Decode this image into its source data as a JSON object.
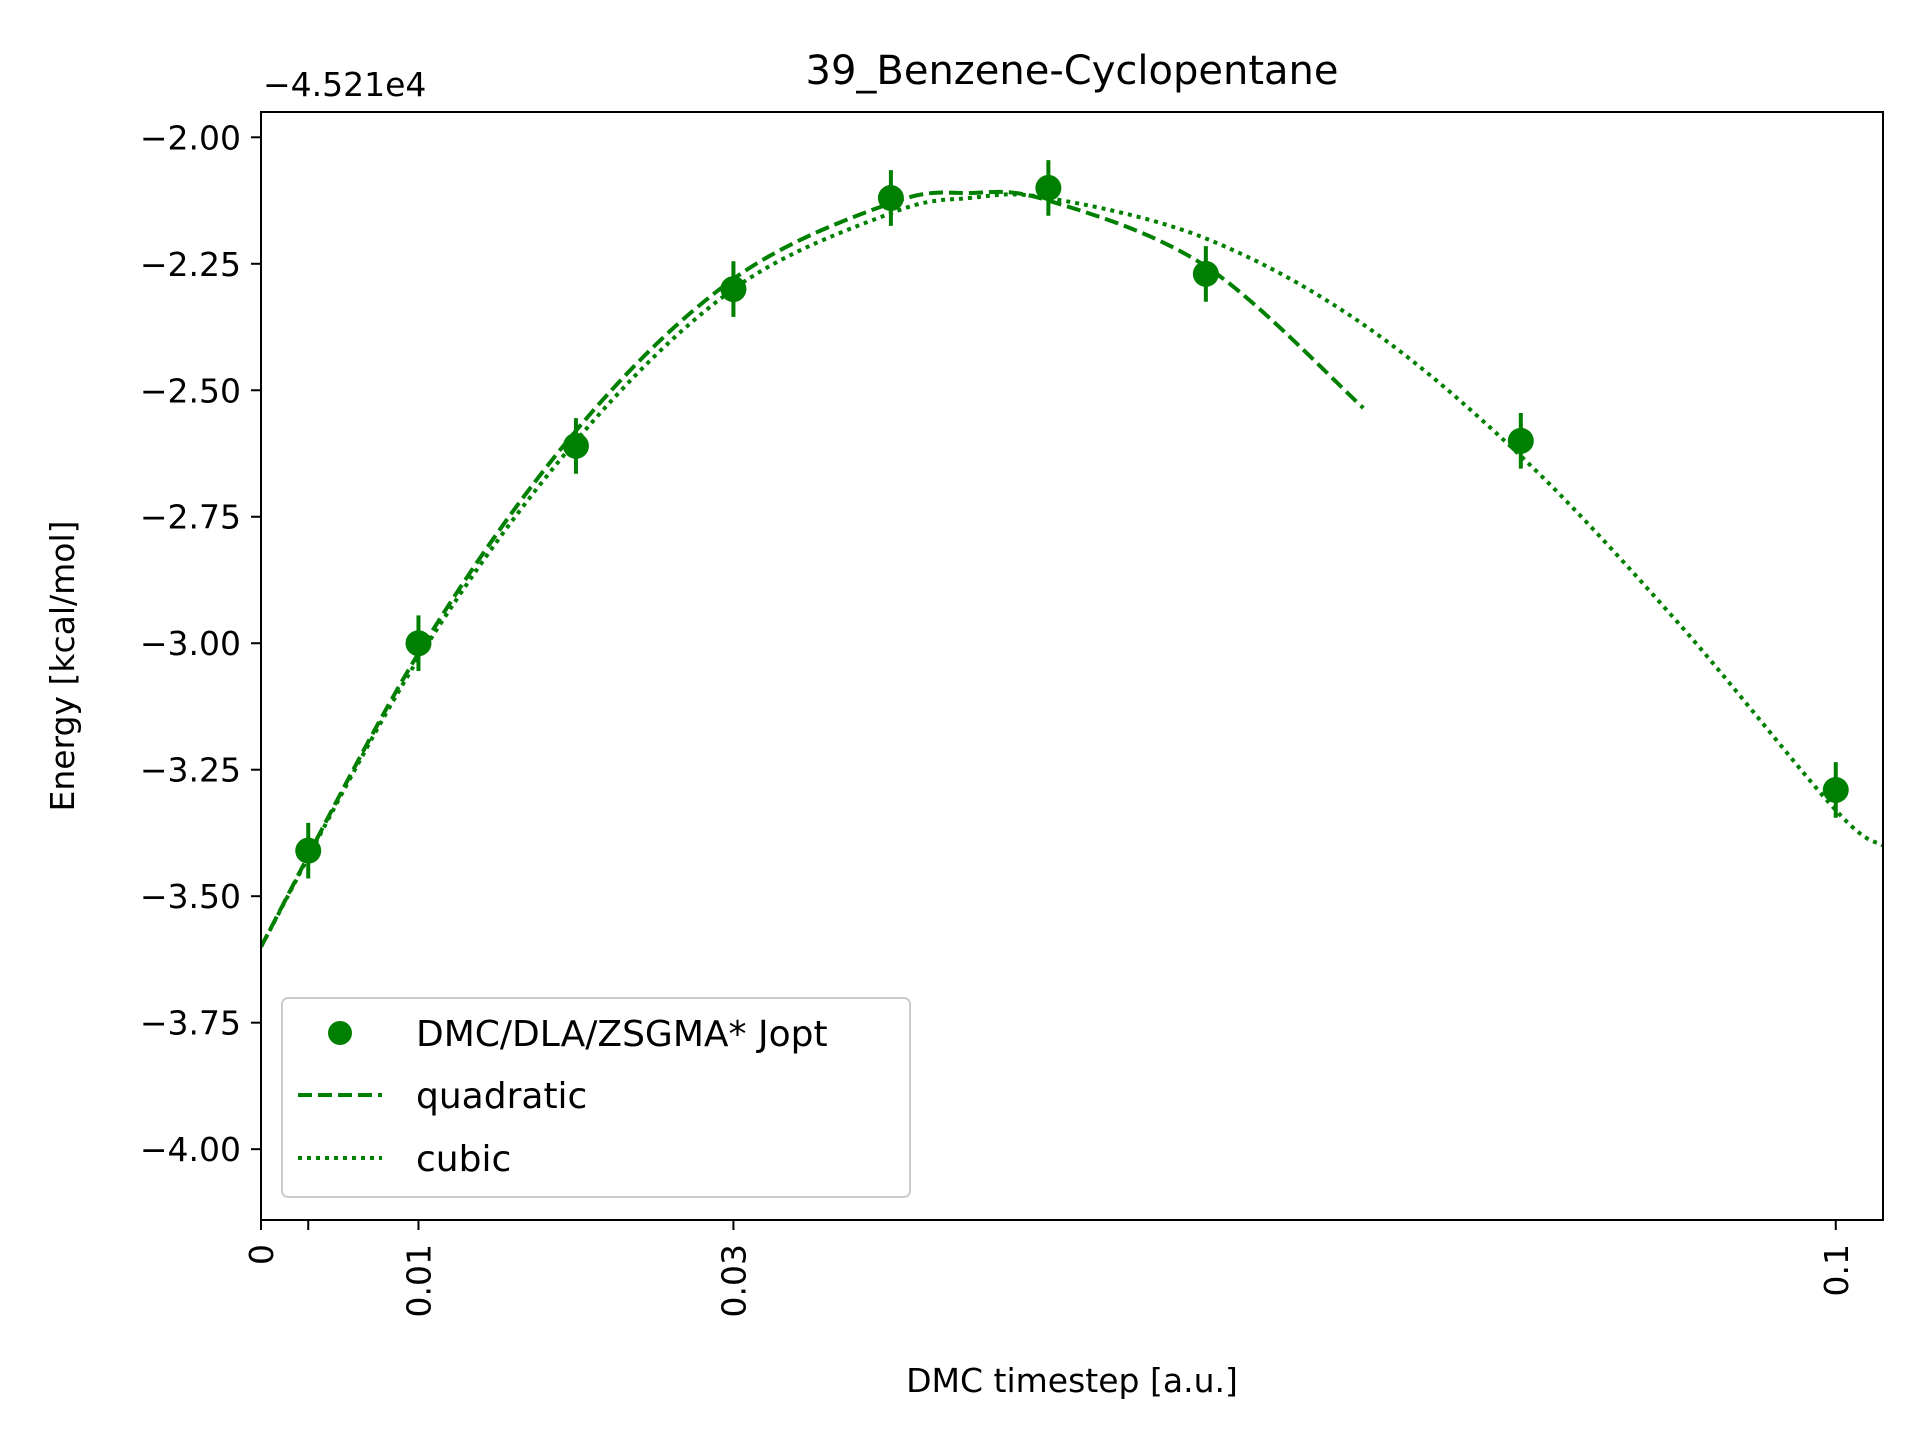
{
  "chart_data": {
    "type": "scatter",
    "title": "39_Benzene-Cyclopentane",
    "xlabel": "DMC timestep [a.u.]",
    "ylabel": "Energy [kcal/mol]",
    "y_offset_label": "−4.521e4",
    "xlim": [
      0,
      0.103
    ],
    "ylim": [
      -4.14,
      -1.95
    ],
    "x_ticks": [
      {
        "value": 0,
        "label": "0"
      },
      {
        "value": 0.003,
        "label": ""
      },
      {
        "value": 0.01,
        "label": "0.01"
      },
      {
        "value": 0.03,
        "label": "0.03"
      },
      {
        "value": 0.1,
        "label": "0.1"
      }
    ],
    "y_ticks": [
      {
        "value": -2.0,
        "label": "−2.00"
      },
      {
        "value": -2.25,
        "label": "−2.25"
      },
      {
        "value": -2.5,
        "label": "−2.50"
      },
      {
        "value": -2.75,
        "label": "−2.75"
      },
      {
        "value": -3.0,
        "label": "−3.00"
      },
      {
        "value": -3.25,
        "label": "−3.25"
      },
      {
        "value": -3.5,
        "label": "−3.50"
      },
      {
        "value": -3.75,
        "label": "−3.75"
      },
      {
        "value": -4.0,
        "label": "−4.00"
      }
    ],
    "legend_position": "lower-left",
    "color": "#008000",
    "series": [
      {
        "name": "DMC/DLA/ZSGMA* Jopt",
        "kind": "errorbar",
        "x": [
          0.003,
          0.01,
          0.02,
          0.03,
          0.04,
          0.05,
          0.06,
          0.08,
          0.1
        ],
        "y": [
          -3.41,
          -3.0,
          -2.61,
          -2.3,
          -2.12,
          -2.1,
          -2.27,
          -2.6,
          -3.29
        ],
        "yerr": [
          0.055,
          0.055,
          0.055,
          0.055,
          0.055,
          0.055,
          0.055,
          0.055,
          0.055
        ]
      },
      {
        "name": "quadratic",
        "kind": "line",
        "dash": "dashed",
        "x": [
          0,
          0.01,
          0.02,
          0.03,
          0.04,
          0.045,
          0.05,
          0.06,
          0.07
        ],
        "y": [
          -3.6,
          -3.02,
          -2.58,
          -2.28,
          -2.13,
          -2.11,
          -2.125,
          -2.255,
          -2.535
        ]
      },
      {
        "name": "cubic",
        "kind": "line",
        "dash": "dotted",
        "x": [
          0,
          0.01,
          0.02,
          0.03,
          0.04,
          0.045,
          0.05,
          0.06,
          0.07,
          0.08,
          0.09,
          0.1,
          0.103
        ],
        "y": [
          -3.6,
          -3.03,
          -2.6,
          -2.3,
          -2.15,
          -2.12,
          -2.12,
          -2.2,
          -2.37,
          -2.63,
          -2.96,
          -3.33,
          -3.4
        ]
      }
    ]
  }
}
